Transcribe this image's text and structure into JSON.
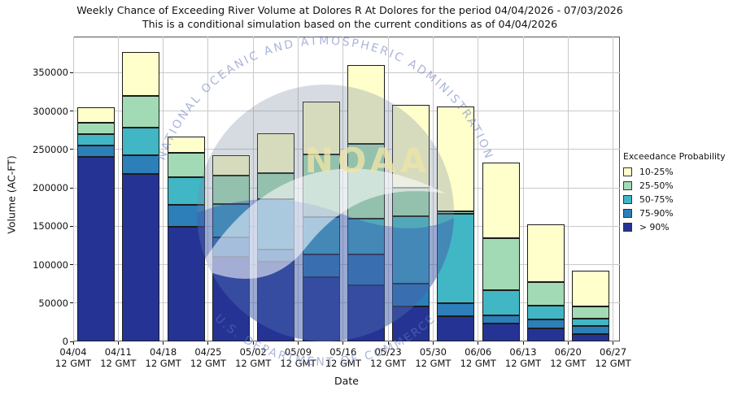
{
  "chart_data": {
    "type": "bar",
    "stacked": true,
    "title": "Weekly Chance of Exceeding River Volume at Dolores R At Dolores for the period 04/04/2026 - 07/03/2026",
    "subtitle": "This is a conditional simulation based on the current conditions as of 04/04/2026",
    "xlabel": "Date",
    "ylabel": "Volume (AC-FT)",
    "ylim": [
      0,
      397000
    ],
    "yticks": [
      0,
      50000,
      100000,
      150000,
      200000,
      250000,
      300000,
      350000
    ],
    "grid": true,
    "legend_position": "right",
    "x_ticks": [
      {
        "date": "04/04",
        "time": "12 GMT"
      },
      {
        "date": "04/11",
        "time": "12 GMT"
      },
      {
        "date": "04/18",
        "time": "12 GMT"
      },
      {
        "date": "04/25",
        "time": "12 GMT"
      },
      {
        "date": "05/02",
        "time": "12 GMT"
      },
      {
        "date": "05/09",
        "time": "12 GMT"
      },
      {
        "date": "05/16",
        "time": "12 GMT"
      },
      {
        "date": "05/23",
        "time": "12 GMT"
      },
      {
        "date": "05/30",
        "time": "12 GMT"
      },
      {
        "date": "06/06",
        "time": "12 GMT"
      },
      {
        "date": "06/13",
        "time": "12 GMT"
      },
      {
        "date": "06/20",
        "time": "12 GMT"
      },
      {
        "date": "06/27",
        "time": "12 GMT"
      }
    ],
    "categories": [
      "04/04",
      "04/11",
      "04/18",
      "04/25",
      "05/02",
      "05/09",
      "05/16",
      "05/23",
      "05/30",
      "06/06",
      "06/13",
      "06/20"
    ],
    "values_unit": "AC-FT",
    "values_are": "cumulative_segment_tops_bottom_to_top",
    "series": [
      {
        "name": "> 90%",
        "color": "#253494",
        "tops": [
          240000,
          218000,
          149000,
          110000,
          104000,
          84000,
          73000,
          46000,
          33000,
          23000,
          17000,
          9000
        ]
      },
      {
        "name": "75-90%",
        "color": "#2C7FB8",
        "tops": [
          255000,
          242000,
          178000,
          136000,
          120000,
          113000,
          113000,
          75000,
          50000,
          34000,
          29000,
          20000
        ]
      },
      {
        "name": "50-75%",
        "color": "#41B6C4",
        "tops": [
          270000,
          278000,
          214000,
          179000,
          185000,
          162000,
          160000,
          163000,
          166000,
          67000,
          47000,
          30000
        ]
      },
      {
        "name": "25-50%",
        "color": "#A1DAB4",
        "tops": [
          285000,
          320000,
          246000,
          216000,
          219000,
          243000,
          257000,
          200000,
          169000,
          134000,
          77000,
          46000
        ]
      },
      {
        "name": "10-25%",
        "color": "#FFFFCC",
        "tops": [
          305000,
          377000,
          267000,
          242000,
          271000,
          312000,
          360000,
          308000,
          306000,
          233000,
          152000,
          92000
        ]
      }
    ]
  },
  "legend": {
    "title": "Exceedance Probability",
    "items": [
      {
        "label": "10-25%",
        "color": "#FFFFCC"
      },
      {
        "label": "25-50%",
        "color": "#A1DAB4"
      },
      {
        "label": "50-75%",
        "color": "#41B6C4"
      },
      {
        "label": "75-90%",
        "color": "#2C7FB8"
      },
      {
        "label": "> 90%",
        "color": "#253494"
      }
    ]
  },
  "watermark": {
    "top_text": "NATIONAL OCEANIC AND ATMOSPHERIC ADMINISTRATION",
    "bottom_text": "U.S. DEPARTMENT OF COMMERCE",
    "center_text": "NOAA"
  }
}
